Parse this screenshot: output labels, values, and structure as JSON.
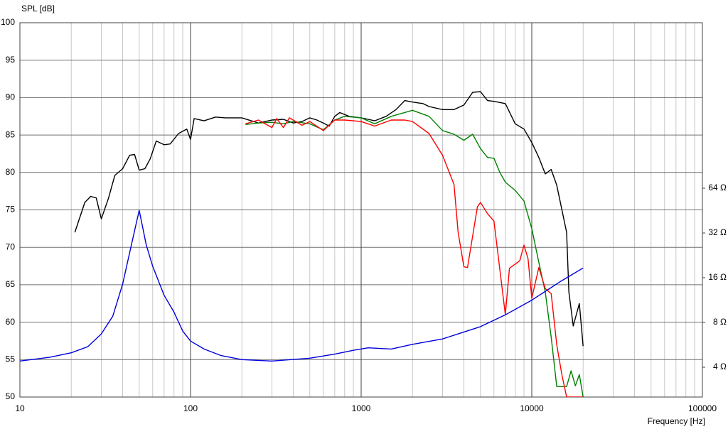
{
  "chart_data": {
    "type": "line",
    "ylabel": "SPL [dB]",
    "xlabel": "Frequency [Hz]",
    "xscale": "log",
    "xlim": [
      10,
      100000
    ],
    "xticks": [
      10,
      100,
      1000,
      10000,
      100000
    ],
    "x_minor_ticks": [
      20,
      30,
      40,
      50,
      60,
      70,
      80,
      90,
      200,
      300,
      400,
      500,
      600,
      700,
      800,
      900,
      2000,
      3000,
      4000,
      5000,
      6000,
      7000,
      8000,
      9000,
      20000,
      30000,
      40000,
      50000,
      60000,
      70000,
      80000,
      90000
    ],
    "ylim": [
      50,
      100
    ],
    "yticks": [
      50,
      55,
      60,
      65,
      70,
      75,
      80,
      85,
      90,
      95,
      100
    ],
    "y2scale": "log",
    "y2lim": [
      2.52,
      831
    ],
    "y2ticks": [
      {
        "value": 4,
        "label": "4 Ω"
      },
      {
        "value": 8,
        "label": "8 Ω"
      },
      {
        "value": 16,
        "label": "16 Ω"
      },
      {
        "value": 32,
        "label": "32 Ω"
      },
      {
        "value": 64,
        "label": "64 Ω"
      }
    ],
    "grid": true,
    "series": [
      {
        "color": "#000000",
        "x": [
          21,
          24,
          26,
          28,
          30,
          33,
          36,
          40,
          44,
          47,
          50,
          54,
          58,
          63,
          70,
          76,
          85,
          95,
          100,
          105,
          120,
          140,
          160,
          200,
          250,
          300,
          350,
          400,
          450,
          500,
          550,
          600,
          650,
          700,
          750,
          850,
          1000,
          1100,
          1200,
          1400,
          1600,
          1800,
          2000,
          2300,
          2500,
          3000,
          3500,
          4000,
          4500,
          5000,
          5500,
          6000,
          7000,
          8000,
          9000,
          10000,
          11000,
          12000,
          13000,
          14000,
          16000,
          16500,
          17500,
          19000,
          20000
        ],
        "values": [
          72,
          76,
          76.8,
          76.6,
          73.8,
          76.5,
          79.6,
          80.5,
          82.3,
          82.4,
          80.3,
          80.5,
          81.8,
          84.2,
          83.7,
          83.8,
          85.2,
          85.8,
          84.4,
          87.2,
          86.9,
          87.4,
          87.3,
          87.3,
          86.6,
          87,
          87.1,
          86.6,
          86.8,
          87.3,
          87,
          86.6,
          86.2,
          87.5,
          88,
          87.5,
          87.3,
          87.1,
          86.9,
          87.5,
          88.4,
          89.6,
          89.4,
          89.2,
          88.8,
          88.4,
          88.4,
          89,
          90.7,
          90.8,
          89.6,
          89.5,
          89.2,
          86.5,
          85.8,
          84,
          82,
          79.8,
          80.4,
          78.3,
          72,
          64,
          59.5,
          62.5,
          56.8
        ]
      },
      {
        "color": "#008000",
        "x": [
          210,
          250,
          300,
          350,
          400,
          500,
          600,
          700,
          800,
          1000,
          1200,
          1500,
          2000,
          2500,
          3000,
          3500,
          4000,
          4500,
          5000,
          5500,
          6000,
          6500,
          7000,
          8000,
          9000,
          10000,
          11000,
          12000,
          13000,
          14000,
          15000,
          16000,
          17000,
          18000,
          19000,
          20000
        ],
        "values": [
          86.4,
          86.6,
          86.7,
          86.5,
          86.8,
          86.5,
          85.7,
          87,
          87.5,
          87.3,
          86.5,
          87.5,
          88.3,
          87.5,
          85.6,
          85.1,
          84.3,
          85.1,
          83.2,
          82,
          81.9,
          80,
          78.7,
          77.6,
          76.2,
          72.5,
          68,
          64,
          58,
          51.4,
          51.4,
          51.4,
          53.5,
          51.5,
          53,
          50
        ]
      },
      {
        "color": "#ff0000",
        "x": [
          210,
          250,
          300,
          320,
          350,
          380,
          450,
          500,
          600,
          700,
          800,
          1000,
          1200,
          1500,
          1800,
          2000,
          2500,
          3000,
          3500,
          3700,
          4000,
          4200,
          4800,
          5000,
          5500,
          6000,
          7000,
          7400,
          8500,
          9000,
          9500,
          10000,
          11000,
          12000,
          13000,
          14000,
          15000,
          16000,
          20000
        ],
        "values": [
          86.5,
          87,
          86,
          87.2,
          86,
          87.3,
          86.3,
          86.8,
          85.6,
          87,
          87,
          86.8,
          86.2,
          87,
          87,
          86.8,
          85.2,
          82.3,
          78.4,
          72,
          67.4,
          67.3,
          75.4,
          76,
          74.5,
          73.5,
          61,
          67.2,
          68.2,
          70.3,
          68.5,
          63.2,
          67.3,
          64.5,
          63.8,
          57,
          53,
          50,
          50
        ]
      },
      {
        "color": "#0000dd",
        "axis": "y2",
        "x": [
          10,
          15,
          20,
          25,
          30,
          35,
          40,
          45,
          50,
          55,
          60,
          70,
          80,
          90,
          100,
          120,
          150,
          200,
          300,
          500,
          700,
          900,
          1100,
          1500,
          2000,
          3000,
          5000,
          7000,
          10000,
          15000,
          20000
        ],
        "values": [
          4.4,
          4.67,
          5.0,
          5.5,
          6.7,
          8.8,
          14.5,
          26.6,
          45.5,
          26.6,
          19.1,
          12.2,
          9.4,
          7.0,
          6.0,
          5.3,
          4.8,
          4.5,
          4.4,
          4.6,
          4.9,
          5.2,
          5.4,
          5.3,
          5.7,
          6.2,
          7.5,
          9.0,
          11.3,
          15.3,
          18.6
        ]
      }
    ]
  }
}
